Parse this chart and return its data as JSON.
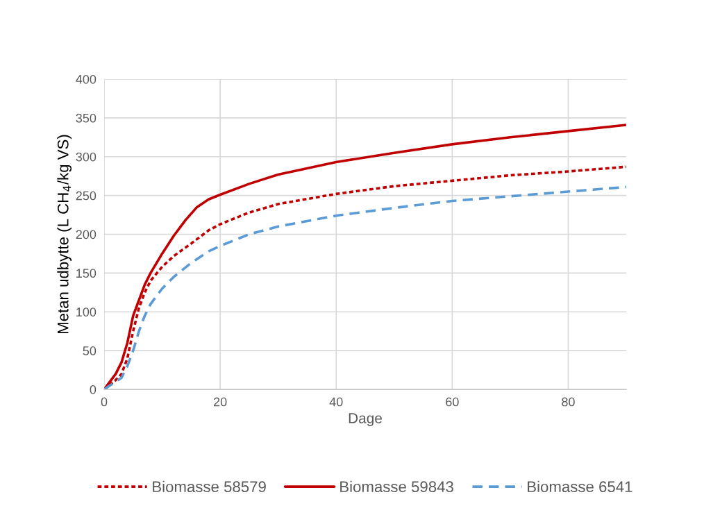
{
  "chart_data": {
    "type": "line",
    "xlabel": "Dage",
    "ylabel": "Metan udbytte (L CH$_{4}$/kg VS)",
    "xlim": [
      0,
      90
    ],
    "xticks": [
      0,
      20,
      40,
      60,
      80
    ],
    "ylim": [
      0,
      400
    ],
    "yticks": [
      0,
      50,
      100,
      150,
      200,
      250,
      300,
      350,
      400
    ],
    "grid": true,
    "legend": "bottom",
    "marker": "none",
    "series": [
      {
        "name": "Biomasse 58579",
        "color": "#c00000",
        "line_style": "dotted",
        "x": [
          0,
          2,
          3,
          4,
          5,
          6,
          7,
          8,
          10,
          12,
          15,
          18,
          20,
          25,
          30,
          40,
          50,
          60,
          70,
          80,
          90
        ],
        "values": [
          0,
          12,
          20,
          40,
          75,
          105,
          125,
          140,
          158,
          172,
          188,
          205,
          213,
          228,
          239,
          252,
          262,
          269,
          276,
          281,
          287
        ]
      },
      {
        "name": "Biomasse 59843",
        "color": "#c00000",
        "line_style": "solid",
        "x": [
          0,
          2,
          3,
          4,
          5,
          6,
          7,
          8,
          10,
          12,
          14,
          16,
          18,
          20,
          25,
          30,
          40,
          50,
          60,
          70,
          80,
          90
        ],
        "values": [
          0,
          20,
          35,
          60,
          95,
          115,
          135,
          150,
          175,
          198,
          218,
          235,
          245,
          251,
          265,
          277,
          293,
          305,
          316,
          325,
          333,
          341
        ]
      },
      {
        "name": "Biomasse 6541",
        "color": "#5b9bd5",
        "line_style": "dashed",
        "x": [
          0,
          2,
          3,
          4,
          5,
          6,
          7,
          8,
          10,
          12,
          15,
          18,
          20,
          25,
          30,
          40,
          50,
          60,
          70,
          80,
          90
        ],
        "values": [
          0,
          10,
          15,
          30,
          50,
          75,
          95,
          110,
          130,
          145,
          163,
          178,
          185,
          200,
          210,
          224,
          234,
          243,
          249,
          255,
          261
        ]
      }
    ]
  }
}
